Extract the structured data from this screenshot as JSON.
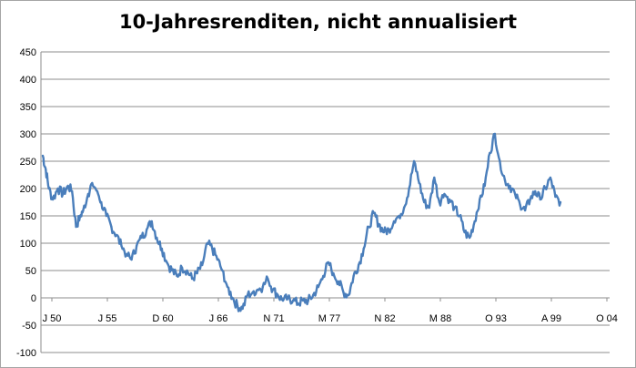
{
  "chart_data": {
    "type": "line",
    "title": "10-Jahresrenditen, nicht annualisiert",
    "xlabel": "",
    "ylabel": "",
    "ylim": [
      -100,
      450
    ],
    "yticks": [
      -100,
      -50,
      0,
      50,
      100,
      150,
      200,
      250,
      300,
      350,
      400,
      450
    ],
    "x_tick_labels": [
      "J 50",
      "J 55",
      "D 60",
      "J 66",
      "N 71",
      "M 77",
      "N 82",
      "M 88",
      "O 93",
      "A 99",
      "O 04"
    ],
    "grid": true,
    "legend": "none",
    "line_color": "#4a7ebb",
    "x_units": "approximate years",
    "x": [
      1950.0,
      1950.3,
      1950.6,
      1951.0,
      1951.5,
      1952.0,
      1952.5,
      1952.9,
      1953.3,
      1953.7,
      1954.0,
      1954.5,
      1954.9,
      1955.4,
      1955.8,
      1956.3,
      1956.8,
      1957.3,
      1957.8,
      1958.3,
      1958.8,
      1959.3,
      1959.8,
      1960.3,
      1960.8,
      1961.3,
      1961.8,
      1962.3,
      1962.8,
      1963.3,
      1963.8,
      1964.3,
      1964.8,
      1965.3,
      1965.8,
      1966.3,
      1966.8,
      1967.3,
      1967.8,
      1968.3,
      1968.8,
      1969.3,
      1969.8,
      1970.3,
      1970.8,
      1971.3,
      1971.8,
      1972.3,
      1972.8,
      1973.3,
      1973.8,
      1974.3,
      1974.8,
      1975.3,
      1975.8,
      1976.3,
      1976.8,
      1977.3,
      1977.8,
      1978.3,
      1978.8,
      1979.3,
      1979.8,
      1980.3,
      1980.8,
      1981.3,
      1981.8,
      1982.3,
      1982.8,
      1983.3,
      1983.8,
      1984.3,
      1984.8,
      1985.3,
      1985.8,
      1986.3,
      1986.8,
      1987.3,
      1987.8,
      1988.3,
      1988.8,
      1989.3,
      1989.8,
      1990.3,
      1990.8,
      1991.3,
      1991.8,
      1992.3,
      1992.8,
      1993.3,
      1993.8,
      1994.3,
      1994.8,
      1995.3,
      1995.8,
      1996.3,
      1996.8,
      1997.3,
      1997.8,
      1998.3,
      1998.8,
      1999.3,
      1999.8,
      2000.3,
      2000.8,
      2001.3
    ],
    "y": [
      260,
      235,
      200,
      180,
      200,
      190,
      205,
      195,
      130,
      150,
      160,
      190,
      210,
      195,
      175,
      150,
      130,
      115,
      95,
      80,
      70,
      95,
      110,
      125,
      140,
      110,
      90,
      65,
      50,
      40,
      55,
      50,
      35,
      45,
      60,
      100,
      90,
      70,
      50,
      20,
      0,
      -15,
      -20,
      5,
      10,
      15,
      20,
      35,
      15,
      5,
      -5,
      0,
      -5,
      -10,
      -5,
      -5,
      5,
      20,
      40,
      65,
      45,
      30,
      10,
      5,
      40,
      60,
      90,
      130,
      155,
      135,
      120,
      125,
      140,
      150,
      165,
      200,
      250,
      210,
      175,
      165,
      220,
      175,
      190,
      180,
      165,
      150,
      120,
      110,
      140,
      180,
      205,
      265,
      300,
      250,
      215,
      205,
      190,
      170,
      160,
      180,
      195,
      180,
      200,
      220,
      185,
      175
    ]
  }
}
